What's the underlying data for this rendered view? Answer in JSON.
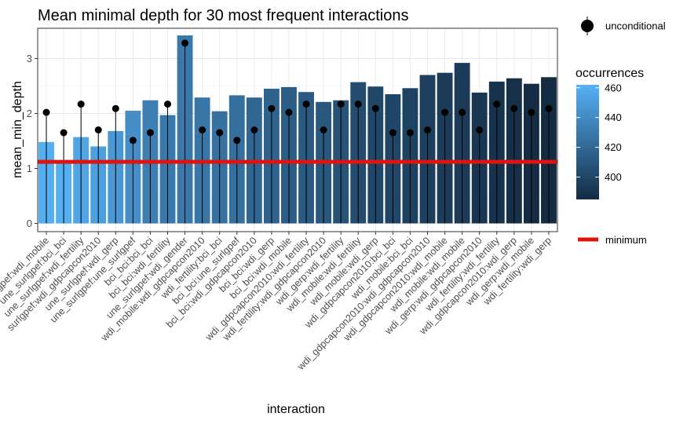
{
  "chart_data": {
    "type": "bar",
    "title": "Mean minimal depth for 30 most frequent interactions",
    "xlabel": "interaction",
    "ylabel": "mean_min_depth",
    "ylim": [
      -0.15,
      3.55
    ],
    "y_ticks": [
      0,
      1,
      2,
      3
    ],
    "y_tick_labels": [
      "0",
      "1",
      "2",
      "3"
    ],
    "grid": true,
    "minimum": 1.12,
    "categories": [
      "surlgpef:wdi_mobile",
      "une_surlgpef:bci_bci",
      "une_surlgpef:wdi_fertility",
      "surlgpef:wdi_gdpcapcon2010",
      "une_surlgpef:wdi_gerp",
      "une_surlgpef:une_surlgpef",
      "bci_bci:bci_bci",
      "bci_bci:wdi_fertility",
      "une_surlgpef:wdi_gender",
      "wdi_mobile:wdi_gdpcapcon2010",
      "wdi_fertility:bci_bci",
      "bci_bci:une_surlgpef",
      "bci_bci:wdi_gdpcapcon2010",
      "bci_bci:wdi_gerp",
      "bci_bci:wdi_mobile",
      "wdi_gdpcapcon2010:wdi_fertility",
      "wdi_fertility:wdi_gdpcapcon2010",
      "wdi_gerp:wdi_fertility",
      "wdi_mobile:wdi_fertility",
      "wdi_mobile:wdi_gerp",
      "wdi_gdpcapcon2010:bci_bci",
      "wdi_mobile:bci_bci",
      "wdi_gdpcapcon2010:wdi_gdpcapcon2010",
      "wdi_gdpcapcon2010:wdi_mobile",
      "wdi_mobile:wdi_mobile",
      "wdi_gerp:wdi_gdpcapcon2010",
      "wdi_fertility:wdi_fertility",
      "wdi_gdpcapcon2010:wdi_gerp",
      "wdi_gerp:wdi_mobile",
      "wdi_fertility:wdi_gerp"
    ],
    "series": [
      {
        "name": "mean_min_depth",
        "values": [
          1.48,
          1.12,
          1.57,
          1.4,
          1.68,
          2.05,
          2.24,
          1.97,
          3.42,
          2.29,
          2.04,
          2.33,
          2.29,
          2.45,
          2.48,
          2.39,
          2.21,
          2.24,
          2.57,
          2.49,
          2.35,
          2.46,
          2.7,
          2.74,
          2.92,
          2.38,
          2.58,
          2.64,
          2.54,
          2.66
        ]
      },
      {
        "name": "unconditional",
        "values": [
          2.02,
          1.65,
          2.17,
          1.7,
          2.09,
          1.51,
          1.65,
          2.17,
          3.28,
          1.7,
          1.65,
          1.51,
          1.7,
          2.09,
          2.02,
          2.17,
          1.7,
          2.17,
          2.17,
          2.09,
          1.65,
          1.65,
          1.7,
          2.02,
          2.02,
          1.7,
          2.17,
          2.09,
          2.02,
          2.09
        ]
      },
      {
        "name": "occurrences",
        "values": [
          460,
          460,
          455,
          452,
          447,
          442,
          433,
          430,
          429,
          428,
          425,
          424,
          419,
          417,
          414,
          412,
          410,
          408,
          404,
          401,
          400,
          398,
          396,
          395,
          394,
          391,
          389,
          388,
          386,
          383
        ]
      }
    ],
    "legend": {
      "point_label": "unconditional",
      "color_title": "occurrences",
      "color_ticks": [
        400,
        420,
        440,
        460
      ],
      "color_range": [
        385,
        462
      ],
      "color_low": "#132B43",
      "color_high": "#56B1F7",
      "line_label": "minimum",
      "line_color": "#E0140F"
    }
  }
}
